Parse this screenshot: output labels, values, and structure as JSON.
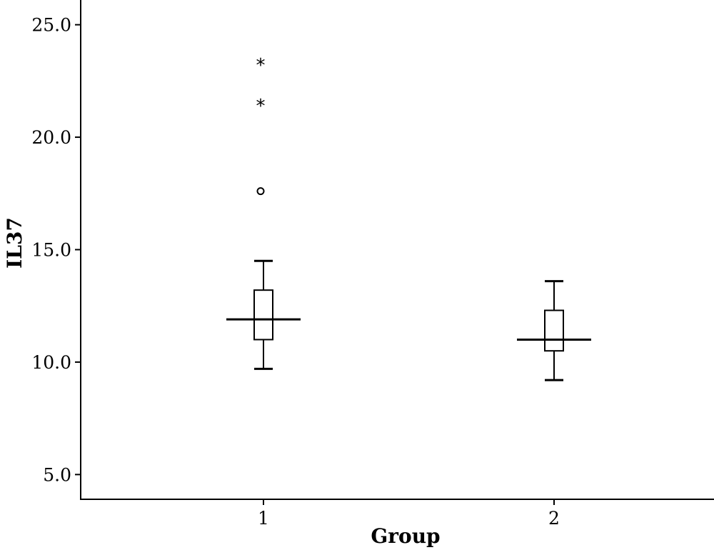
{
  "chart_data": {
    "type": "boxplot",
    "xlabel": "Group",
    "ylabel": "IL37",
    "categories": [
      "1",
      "2"
    ],
    "ylim": [
      3.9,
      26.1
    ],
    "yticks": [
      5.0,
      10.0,
      15.0,
      20.0,
      25.0
    ],
    "ytick_labels": [
      "5.0",
      "10.0",
      "15.0",
      "20.0",
      "25.0"
    ],
    "grid": false,
    "legend": "none",
    "series": [
      {
        "category": "1",
        "whisker_low": 9.7,
        "q1": 11.0,
        "median": 11.9,
        "q3": 13.2,
        "whisker_high": 14.5,
        "outliers": [
          {
            "value": 17.6,
            "marker": "circle"
          }
        ],
        "extremes": [
          {
            "value": 21.5,
            "marker": "star"
          },
          {
            "value": 23.3,
            "marker": "star"
          }
        ]
      },
      {
        "category": "2",
        "whisker_low": 9.2,
        "q1": 10.5,
        "median": 11.0,
        "q3": 12.3,
        "whisker_high": 13.6,
        "outliers": [],
        "extremes": []
      }
    ]
  }
}
